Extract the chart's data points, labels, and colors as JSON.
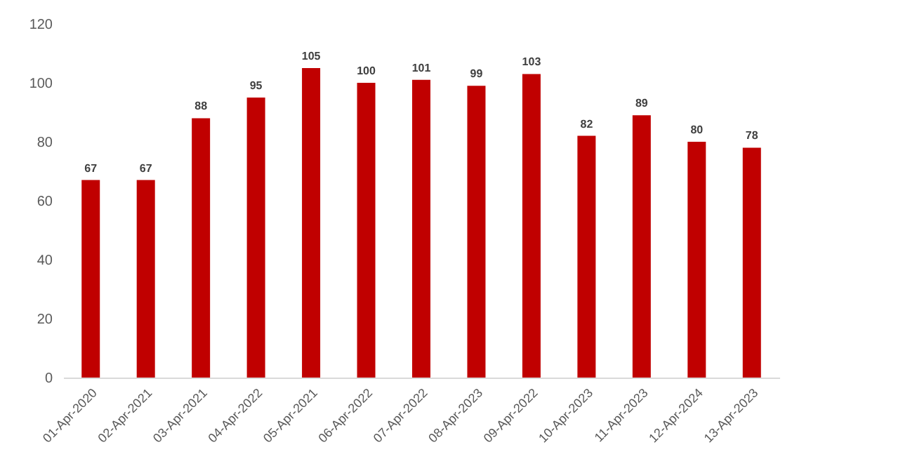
{
  "chart_data": {
    "type": "bar",
    "categories": [
      "01-Apr-2020",
      "02-Apr-2021",
      "03-Apr-2021",
      "04-Apr-2022",
      "05-Apr-2021",
      "06-Apr-2022",
      "07-Apr-2022",
      "08-Apr-2023",
      "09-Apr-2022",
      "10-Apr-2023",
      "11-Apr-2023",
      "12-Apr-2024",
      "13-Apr-2023"
    ],
    "values": [
      67,
      67,
      88,
      95,
      105,
      100,
      101,
      99,
      103,
      82,
      89,
      80,
      78
    ],
    "color": "#c00000",
    "ylim": [
      0,
      120
    ],
    "yticks": [
      0,
      20,
      40,
      60,
      80,
      100,
      120
    ],
    "data_labels": true,
    "grid": false
  }
}
